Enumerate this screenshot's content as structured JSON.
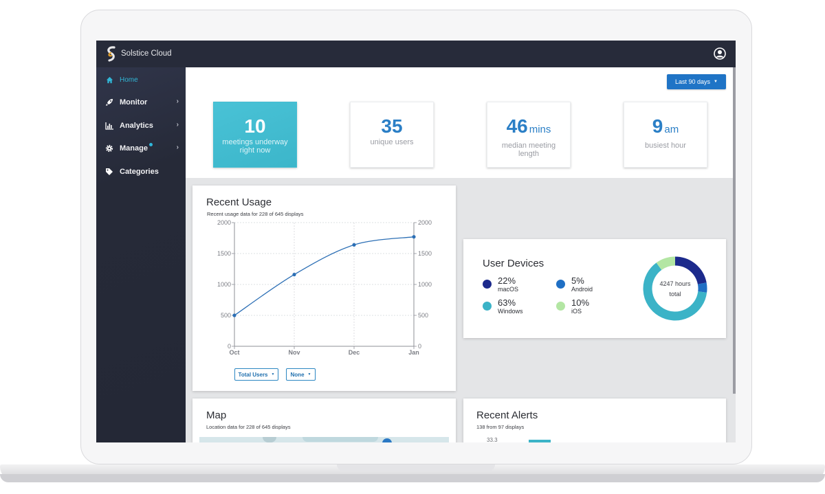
{
  "app": {
    "title": "Solstice Cloud"
  },
  "sidebar": {
    "items": [
      {
        "label": "Home",
        "icon": "home-icon"
      },
      {
        "label": "Monitor",
        "icon": "rocket-icon"
      },
      {
        "label": "Analytics",
        "icon": "bar-chart-icon"
      },
      {
        "label": "Manage",
        "icon": "gear-icon"
      },
      {
        "label": "Categories",
        "icon": "tag-icon"
      }
    ]
  },
  "header": {
    "date_range": "Last 90 days"
  },
  "stats": [
    {
      "value": "10",
      "unit": "",
      "label": "meetings underway right now"
    },
    {
      "value": "35",
      "unit": "",
      "label": "unique users"
    },
    {
      "value": "46",
      "unit": "mins",
      "label": "median meeting length"
    },
    {
      "value": "9",
      "unit": "am",
      "label": "busiest hour"
    }
  ],
  "recent_usage": {
    "title": "Recent Usage",
    "subtitle": "Recent usage data for 228 of 645 displays",
    "filter1": "Total Users",
    "filter2": "None",
    "color": "#2c6fb5"
  },
  "chart_data": {
    "type": "line",
    "x": [
      "Oct",
      "Nov",
      "Dec",
      "Jan"
    ],
    "series": [
      {
        "values": [
          500,
          1160,
          1640,
          1770
        ]
      }
    ],
    "ylim": [
      0,
      2000
    ],
    "yticks": [
      0,
      500,
      1000,
      1500,
      2000
    ],
    "grid": true,
    "secondary_axis": true
  },
  "user_devices": {
    "title": "User Devices",
    "total": "4247 hours",
    "total_label": "total",
    "items": [
      {
        "pct": "22%",
        "name": "macOS",
        "value": 22,
        "color": "#1c2a8c"
      },
      {
        "pct": "5%",
        "name": "Android",
        "value": 5,
        "color": "#1f6fc4"
      },
      {
        "pct": "63%",
        "name": "Windows",
        "value": 63,
        "color": "#3bb3c7"
      },
      {
        "pct": "10%",
        "name": "iOS",
        "value": 10,
        "color": "#b3e6a3"
      }
    ]
  },
  "map": {
    "title": "Map",
    "subtitle": "Location data for 228 of 645 displays"
  },
  "alerts": {
    "title": "Recent Alerts",
    "subtitle": "138 from 97 displays",
    "peek_value": "33.3"
  }
}
